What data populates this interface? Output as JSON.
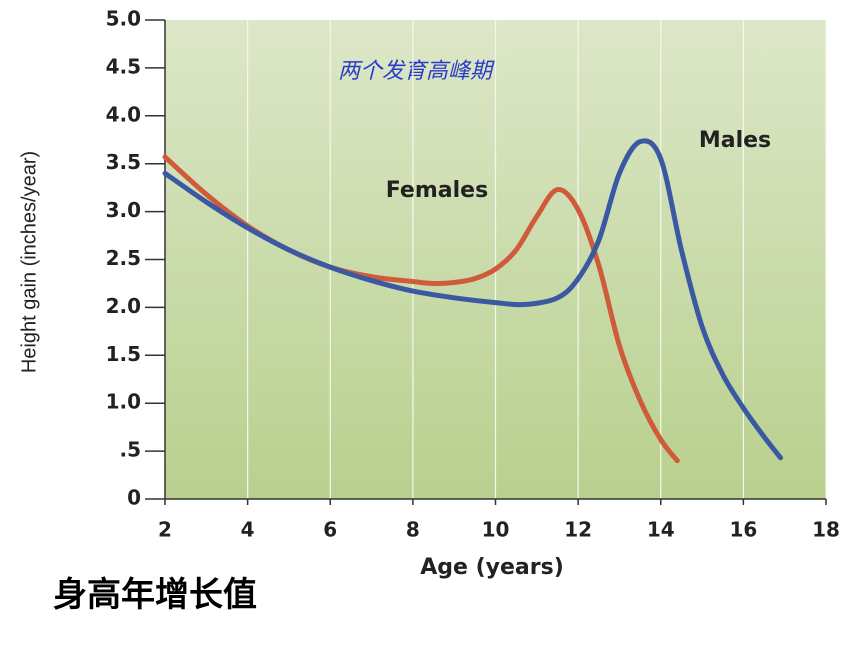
{
  "chart_data": {
    "type": "line",
    "title": "两个发育高峰期",
    "caption": "身高年增长值",
    "x_label": "Age (years)",
    "y_label": "Height gain (inches/year)",
    "xlim": [
      2,
      18
    ],
    "xticks": [
      2,
      4,
      6,
      8,
      10,
      12,
      14,
      16,
      18
    ],
    "ylim": [
      0,
      5
    ],
    "yticks": [
      0,
      {
        "value": 0.5,
        "label": ".5"
      },
      {
        "value": 1,
        "label": "1.0"
      },
      1.5,
      {
        "value": 2,
        "label": "2.0"
      },
      2.5,
      {
        "value": 3,
        "label": "3.0"
      },
      3.5,
      {
        "value": 4,
        "label": "4.0"
      },
      4.5,
      {
        "value": 5,
        "label": "5.0"
      }
    ],
    "grid": true,
    "series": [
      {
        "name": "Females",
        "color": "#cf5b3b",
        "x": [
          2,
          3,
          4,
          5,
          6,
          7,
          8,
          8.5,
          9,
          9.5,
          10,
          10.5,
          11,
          11.5,
          12,
          12.5,
          13,
          13.5,
          14,
          14.4
        ],
        "values": [
          3.57,
          3.18,
          2.85,
          2.6,
          2.42,
          2.32,
          2.27,
          2.25,
          2.26,
          2.3,
          2.4,
          2.6,
          2.95,
          3.23,
          3.02,
          2.44,
          1.6,
          1.03,
          0.62,
          0.4
        ]
      },
      {
        "name": "Males",
        "color": "#3b58a3",
        "x": [
          2,
          3,
          4,
          5,
          6,
          7,
          8,
          9,
          10,
          10.7,
          11.5,
          12,
          12.5,
          13,
          13.5,
          14,
          14.5,
          15,
          15.5,
          16,
          16.5,
          16.9
        ],
        "values": [
          3.4,
          3.1,
          2.83,
          2.6,
          2.42,
          2.28,
          2.17,
          2.1,
          2.05,
          2.03,
          2.1,
          2.3,
          2.7,
          3.4,
          3.73,
          3.55,
          2.6,
          1.8,
          1.3,
          0.95,
          0.65,
          0.43
        ]
      }
    ]
  }
}
